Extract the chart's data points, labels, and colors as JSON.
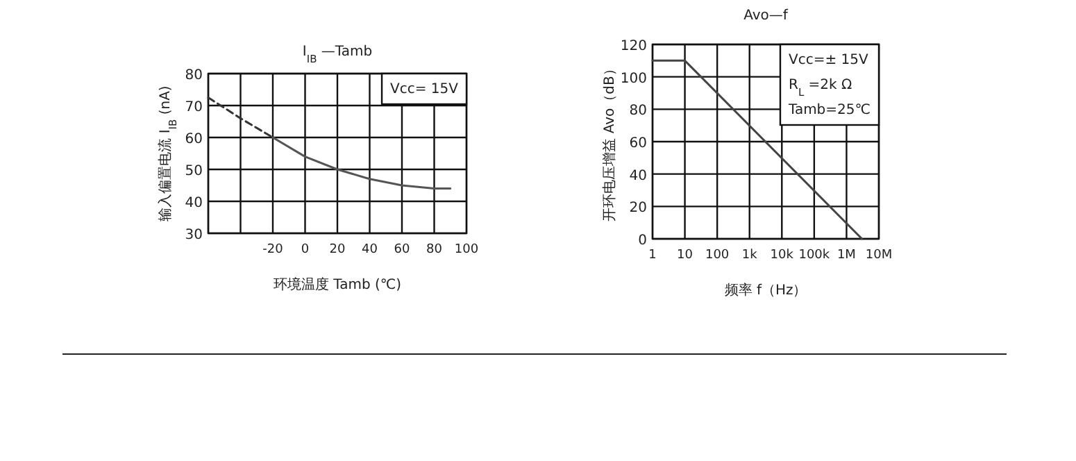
{
  "chart_data": [
    {
      "type": "line",
      "title": "I$_{IB}$ —Tamb",
      "xlabel": "环境温度 Tamb (℃)",
      "ylabel": "输入偏置电流 I$_{IB}$ (nA)",
      "xlim": [
        -60,
        100
      ],
      "ylim": [
        30,
        80
      ],
      "xticks": [
        {
          "value": -60,
          "label": null
        },
        {
          "value": -40,
          "label": null
        },
        -20,
        0,
        20,
        40,
        60,
        80,
        100
      ],
      "yticks": [
        30,
        40,
        50,
        60,
        70,
        80
      ],
      "grid": true,
      "annotations": [
        "Vcc=  15V"
      ],
      "series": [
        {
          "color": "#333333",
          "line_style": "dashed",
          "x": [
            -60,
            -40,
            -20
          ],
          "values": [
            72.5,
            66,
            60
          ]
        },
        {
          "color": "#555555",
          "line_style": "solid",
          "x": [
            -20,
            0,
            20,
            40,
            60,
            80,
            90
          ],
          "values": [
            60,
            54,
            50,
            47,
            45,
            44,
            44
          ]
        }
      ]
    },
    {
      "type": "line",
      "title": "Avo—f",
      "xlabel": "频率  f（Hz）",
      "ylabel": "开环电压增益 Avo（dB）",
      "log": "x",
      "xlim": [
        1,
        10000000
      ],
      "ylim": [
        0,
        120
      ],
      "xticks": [
        1,
        10,
        100,
        {
          "value": 1000,
          "label": "1k"
        },
        {
          "value": 10000,
          "label": "10k"
        },
        {
          "value": 100000,
          "label": "100k"
        },
        {
          "value": 1000000,
          "label": "1M"
        },
        {
          "value": 10000000,
          "label": "10M"
        }
      ],
      "yticks": [
        0,
        20,
        40,
        60,
        80,
        100,
        120
      ],
      "grid": true,
      "annotations": [
        "Vcc=± 15V",
        "R$_{L}$ =2k Ω",
        "Tamb=25℃"
      ],
      "series": [
        {
          "color": "#444444",
          "line_style": "solid",
          "x": [
            1,
            10,
            3000000
          ],
          "values": [
            110,
            110,
            0
          ]
        }
      ]
    }
  ]
}
